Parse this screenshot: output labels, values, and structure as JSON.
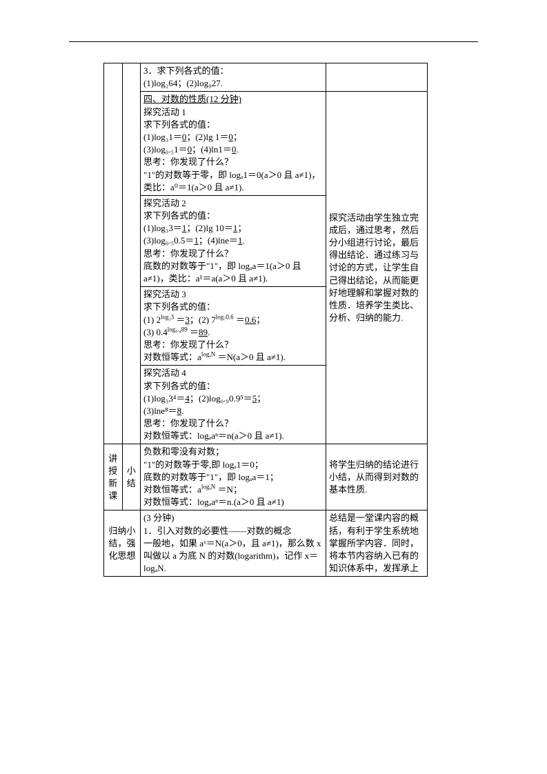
{
  "page": {
    "background_color": "#ffffff",
    "text_color": "#000000",
    "font_family": "SimSun",
    "font_size_pt": 10.5,
    "border_color": "#000000"
  },
  "rows": {
    "r0": {
      "left1_text": "",
      "left2_text": "",
      "content": "3．求下列各式的值：\n(1)log₂64；(2)log₉27.",
      "right": ""
    },
    "section4": {
      "title": "四、对数的性质(12 分钟)",
      "activity1": {
        "heading": "探究活动 1",
        "line1": "求下列各式的值：",
        "line2a": "(1)log₃1＝",
        "line2a_val": "0",
        "line2b": "；(2)lg 1＝",
        "line2b_val": "0",
        "line2b_end": "；",
        "line3a": "(3)log₀.₅1＝",
        "line3a_val": "0",
        "line3b": "；(4)ln1＝",
        "line3b_val": "0",
        "line3b_end": ".",
        "line4": "思考：你发现了什么？",
        "line5": "\"1\"的对数等于零，即 logₐ1＝0(a＞0 且 a≠1)，类比：a⁰＝1(a＞0 且 a≠1)."
      },
      "activity2": {
        "heading": "探究活动 2",
        "line1": "求下列各式的值：",
        "line2a": "(1)log₃3＝",
        "line2a_val": "1",
        "line2b": "；(2)lg 10＝",
        "line2b_val": "1",
        "line2b_end": "；",
        "line3a": "(3)log₀.₅0.5＝",
        "line3a_val": "1",
        "line3b": "；(4)lne＝",
        "line3b_val": "1",
        "line3b_end": ".",
        "line4": "思考：你发现了什么？",
        "line5": "底数的对数等于\"1\"，即 logₐa＝1(a＞0 且 a≠1)，类比：a¹＝a(a＞0 且 a≠1)."
      },
      "activity3": {
        "heading": "探究活动 3",
        "line1": "求下列各式的值：",
        "eq1_pre": "(1) 2",
        "eq1_sup": "log₂3",
        "eq1_post": " ＝",
        "eq1_val": "3",
        "eq2_pre": "；(2) 7",
        "eq2_sup": "log₇0.6",
        "eq2_post": " ＝",
        "eq2_val": "0.6",
        "eq2_end": "；",
        "eq3_pre": "(3) 0.4",
        "eq3_sup": "log₀.₄89",
        "eq3_post": " ＝",
        "eq3_val": "89",
        "eq3_end": ".",
        "line4": "思考：你发现了什么？",
        "line5_pre": "对数恒等式：a",
        "line5_sup": "logₐN",
        "line5_post": " ＝N(a＞0 且 a≠1)."
      },
      "activity4": {
        "heading": "探究活动 4",
        "line1": "求下列各式的值：",
        "line2a": "(1)log₃3⁴＝",
        "line2a_val": "4",
        "line2b": "；(2)log₀.₉0.9⁵＝",
        "line2b_val": "5",
        "line2b_end": "；",
        "line3a": "(3)lne⁸＝",
        "line3a_val": "8",
        "line3a_end": ".",
        "line4": "思考：你发现了什么？",
        "line5": "对数恒等式：logₐaⁿ＝n(a＞0 且 a≠1)."
      },
      "right_text": "探究活动由学生独立完成后，通过思考，然后分小组进行讨论，最后得出结论．通过练习与讨论的方式，让学生自己得出结论，从而能更好地理解和掌握对数的性质．培养学生类比、分析、归纳的能力."
    },
    "summary_row": {
      "left1": "讲授新课",
      "left2": "小结",
      "content_l1": "负数和零没有对数；",
      "content_l2": "\"1\"的对数等于零,即 logₐ1＝0；",
      "content_l3": "底数的对数等于\"1\"，即 logₐa＝1；",
      "content_l4_pre": "对数恒等式：a",
      "content_l4_sup": "logₐN",
      "content_l4_post": " ＝N；",
      "content_l5": "对数恒等式：logₐaⁿ＝n.(a＞0 且 a≠1)",
      "right": "将学生归纳的结论进行小结，从而得到对数的基本性质."
    },
    "conclusion_row": {
      "left": "归纳小结，强化思想",
      "content": "(3 分钟)\n1．引入对数的必要性——对数的概念\n一般地，如果 aˣ＝N(a＞0，且 a≠1)，那么数 x 叫做以 a 为底 N 的对数(logarithm)，记作 x＝logₐN.",
      "right": "总结是一堂课内容的概括，有利于学生系统地掌握所学内容．同时，将本节内容纳入已有的知识体系中，发挥承上"
    }
  }
}
